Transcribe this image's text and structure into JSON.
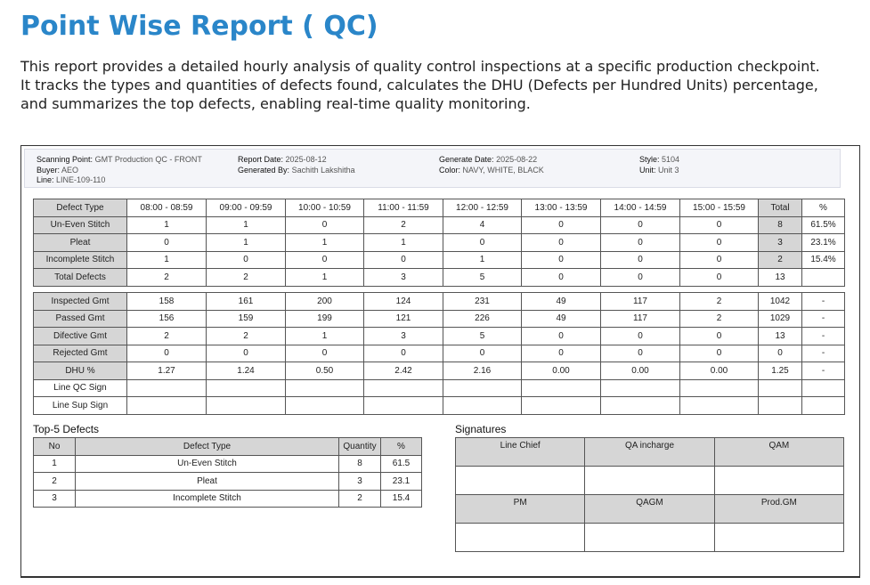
{
  "title": "Point Wise Report ( QC)",
  "description": "This report provides a detailed hourly analysis of quality control inspections at a specific production checkpoint. It tracks the types and quantities of defects found, calculates the DHU (Defects per Hundred Units) percentage, and summarizes the top defects, enabling real-time quality monitoring.",
  "info": {
    "scanning_point_label": "Scanning Point:",
    "scanning_point": "GMT Production QC - FRONT",
    "buyer_label": "Buyer:",
    "buyer": "AEO",
    "line_label": "Line:",
    "line": "LINE-109-110",
    "report_date_label": "Report Date:",
    "report_date": "2025-08-12",
    "generated_by_label": "Generated By:",
    "generated_by": "Sachith Lakshitha",
    "generate_date_label": "Generate Date:",
    "generate_date": "2025-08-22",
    "color_label": "Color:",
    "color": "NAVY, WHITE, BLACK",
    "style_label": "Style:",
    "style": "5104",
    "unit_label": "Unit:",
    "unit": "Unit 3"
  },
  "defects": {
    "headers": [
      "Defect Type",
      "08:00 - 08:59",
      "09:00 - 09:59",
      "10:00 - 10:59",
      "11:00 - 11:59",
      "12:00 - 12:59",
      "13:00 - 13:59",
      "14:00 - 14:59",
      "15:00 - 15:59",
      "Total",
      "%"
    ],
    "rows": [
      [
        "Un-Even Stitch",
        "1",
        "1",
        "0",
        "2",
        "4",
        "0",
        "0",
        "0",
        "8",
        "61.5%"
      ],
      [
        "Pleat",
        "0",
        "1",
        "1",
        "1",
        "0",
        "0",
        "0",
        "0",
        "3",
        "23.1%"
      ],
      [
        "Incomplete Stitch",
        "1",
        "0",
        "0",
        "0",
        "1",
        "0",
        "0",
        "0",
        "2",
        "15.4%"
      ],
      [
        "Total Defects",
        "2",
        "2",
        "1",
        "3",
        "5",
        "0",
        "0",
        "0",
        "13",
        ""
      ]
    ]
  },
  "summary": {
    "rows": [
      [
        "Inspected Gmt",
        "158",
        "161",
        "200",
        "124",
        "231",
        "49",
        "117",
        "2",
        "1042",
        "-"
      ],
      [
        "Passed Gmt",
        "156",
        "159",
        "199",
        "121",
        "226",
        "49",
        "117",
        "2",
        "1029",
        "-"
      ],
      [
        "Difective Gmt",
        "2",
        "2",
        "1",
        "3",
        "5",
        "0",
        "0",
        "0",
        "13",
        "-"
      ],
      [
        "Rejected Gmt",
        "0",
        "0",
        "0",
        "0",
        "0",
        "0",
        "0",
        "0",
        "0",
        "-"
      ],
      [
        "DHU %",
        "1.27",
        "1.24",
        "0.50",
        "2.42",
        "2.16",
        "0.00",
        "0.00",
        "0.00",
        "1.25",
        "-"
      ],
      [
        "Line QC Sign",
        "",
        "",
        "",
        "",
        "",
        "",
        "",
        "",
        "",
        ""
      ],
      [
        "Line Sup Sign",
        "",
        "",
        "",
        "",
        "",
        "",
        "",
        "",
        "",
        ""
      ]
    ]
  },
  "top5": {
    "title": "Top-5 Defects",
    "headers": [
      "No",
      "Defect Type",
      "Quantity",
      "%"
    ],
    "rows": [
      [
        "1",
        "Un-Even Stitch",
        "8",
        "61.5"
      ],
      [
        "2",
        "Pleat",
        "3",
        "23.1"
      ],
      [
        "3",
        "Incomplete Stitch",
        "2",
        "15.4"
      ]
    ]
  },
  "signatures": {
    "title": "Signatures",
    "row1": [
      "Line Chief",
      "QA incharge",
      "QAM"
    ],
    "row2": [
      "PM",
      "QAGM",
      "Prod.GM"
    ]
  }
}
